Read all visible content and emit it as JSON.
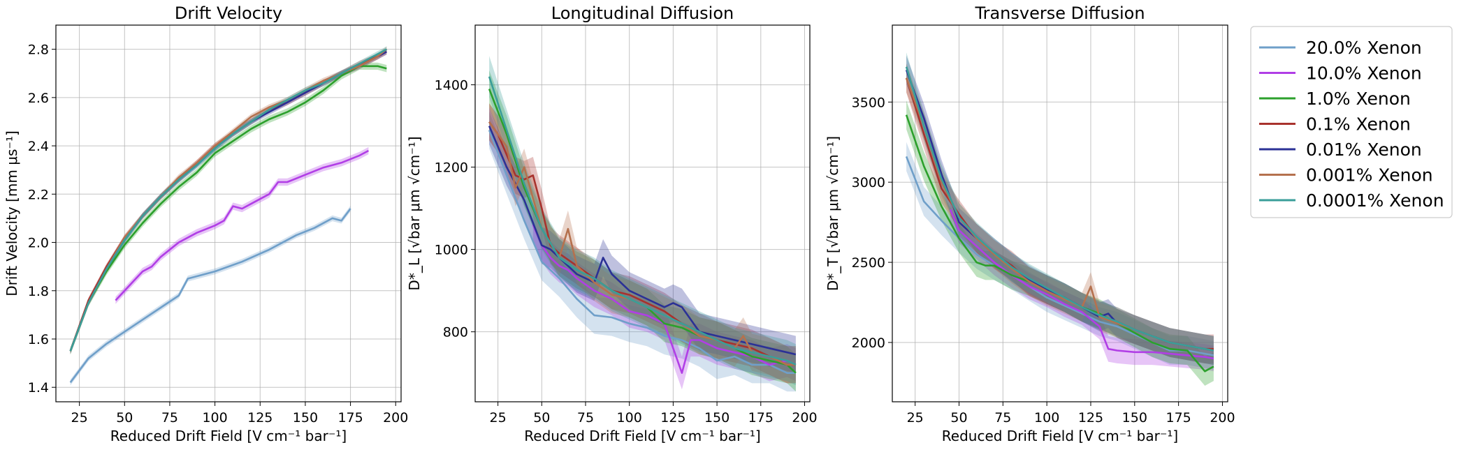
{
  "chart_data": [
    {
      "type": "line",
      "title": "Drift Velocity",
      "xlabel": "Reduced Drift Field [V cm⁻¹ bar⁻¹]",
      "ylabel": "Drift Velocity [mm μs⁻¹]",
      "xlim": [
        12,
        203
      ],
      "ylim": [
        1.34,
        2.9
      ],
      "xticks": [
        "25",
        "50",
        "75",
        "100",
        "125",
        "150",
        "175",
        "200"
      ],
      "yticks": [
        "1.4",
        "1.6",
        "1.8",
        "2.0",
        "2.2",
        "2.4",
        "2.6",
        "2.8"
      ],
      "grid": true,
      "series": [
        {
          "name": "20.0% Xenon",
          "color": "#6f9fc9",
          "x": [
            20,
            30,
            40,
            50,
            60,
            70,
            80,
            85,
            100,
            115,
            130,
            145,
            155,
            165,
            170,
            175
          ],
          "y": [
            1.42,
            1.52,
            1.58,
            1.63,
            1.68,
            1.73,
            1.78,
            1.85,
            1.88,
            1.92,
            1.97,
            2.03,
            2.06,
            2.1,
            2.09,
            2.14
          ],
          "band": 0.012
        },
        {
          "name": "10.0% Xenon",
          "color": "#b13ee6",
          "x": [
            45,
            50,
            55,
            60,
            65,
            70,
            80,
            90,
            100,
            105,
            110,
            115,
            120,
            130,
            135,
            140,
            150,
            160,
            170,
            180,
            185
          ],
          "y": [
            1.76,
            1.8,
            1.84,
            1.88,
            1.9,
            1.94,
            2.0,
            2.04,
            2.07,
            2.09,
            2.15,
            2.14,
            2.16,
            2.2,
            2.25,
            2.25,
            2.28,
            2.31,
            2.33,
            2.36,
            2.38
          ],
          "band": 0.015
        },
        {
          "name": "1.0% Xenon",
          "color": "#2ca02c",
          "x": [
            20,
            30,
            40,
            50,
            60,
            70,
            80,
            90,
            100,
            110,
            120,
            130,
            140,
            150,
            160,
            170,
            180,
            190,
            195
          ],
          "y": [
            1.55,
            1.75,
            1.88,
            1.99,
            2.08,
            2.16,
            2.23,
            2.29,
            2.37,
            2.42,
            2.47,
            2.51,
            2.54,
            2.58,
            2.63,
            2.69,
            2.73,
            2.73,
            2.72
          ],
          "band": 0.015
        },
        {
          "name": "0.1% Xenon",
          "color": "#a8322d",
          "x": [
            20,
            30,
            40,
            50,
            60,
            70,
            80,
            90,
            100,
            110,
            120,
            130,
            140,
            150,
            160,
            170,
            180,
            190,
            195
          ],
          "y": [
            1.55,
            1.76,
            1.9,
            2.02,
            2.11,
            2.19,
            2.26,
            2.33,
            2.4,
            2.45,
            2.5,
            2.55,
            2.58,
            2.62,
            2.66,
            2.7,
            2.74,
            2.77,
            2.79
          ],
          "band": 0.012
        },
        {
          "name": "0.01% Xenon",
          "color": "#2b3196",
          "x": [
            20,
            30,
            40,
            50,
            60,
            70,
            80,
            90,
            100,
            110,
            120,
            130,
            140,
            150,
            160,
            170,
            180,
            190,
            195
          ],
          "y": [
            1.55,
            1.75,
            1.89,
            2.01,
            2.11,
            2.19,
            2.26,
            2.32,
            2.39,
            2.45,
            2.5,
            2.54,
            2.58,
            2.62,
            2.66,
            2.7,
            2.73,
            2.77,
            2.79
          ],
          "band": 0.012
        },
        {
          "name": "0.001% Xenon",
          "color": "#b5714e",
          "x": [
            20,
            30,
            40,
            50,
            60,
            70,
            80,
            90,
            100,
            110,
            120,
            130,
            140,
            150,
            160,
            170,
            180,
            190,
            195
          ],
          "y": [
            1.55,
            1.75,
            1.89,
            2.02,
            2.11,
            2.19,
            2.27,
            2.33,
            2.4,
            2.46,
            2.52,
            2.56,
            2.59,
            2.63,
            2.67,
            2.7,
            2.73,
            2.77,
            2.8
          ],
          "band": 0.012
        },
        {
          "name": "0.0001% Xenon",
          "color": "#3a9e99",
          "x": [
            20,
            30,
            40,
            50,
            60,
            70,
            80,
            90,
            100,
            110,
            120,
            130,
            140,
            150,
            160,
            170,
            180,
            190,
            195
          ],
          "y": [
            1.55,
            1.75,
            1.89,
            2.01,
            2.11,
            2.19,
            2.26,
            2.32,
            2.39,
            2.45,
            2.5,
            2.55,
            2.59,
            2.63,
            2.66,
            2.7,
            2.74,
            2.78,
            2.8
          ],
          "band": 0.012
        }
      ]
    },
    {
      "type": "line",
      "title": "Longitudinal Diffusion",
      "xlabel": "Reduced Drift Field [V cm⁻¹ bar⁻¹]",
      "ylabel": "D*_L [√bar μm √cm⁻¹]",
      "xlim": [
        12,
        203
      ],
      "ylim": [
        630,
        1545
      ],
      "xticks": [
        "25",
        "50",
        "75",
        "100",
        "125",
        "150",
        "175",
        "200"
      ],
      "yticks": [
        "800",
        "1000",
        "1200",
        "1400"
      ],
      "grid": true,
      "series": [
        {
          "name": "20.0% Xenon",
          "color": "#6f9fc9",
          "x": [
            20,
            30,
            40,
            50,
            60,
            70,
            80,
            90,
            100,
            110,
            120,
            130,
            140,
            150,
            160,
            170,
            180,
            190,
            195
          ],
          "y": [
            1290,
            1180,
            1070,
            970,
            930,
            880,
            840,
            835,
            820,
            810,
            790,
            780,
            760,
            730,
            740,
            720,
            720,
            700,
            700
          ],
          "band": 45
        },
        {
          "name": "10.0% Xenon",
          "color": "#b13ee6",
          "x": [
            45,
            50,
            55,
            60,
            65,
            70,
            80,
            90,
            100,
            110,
            120,
            125,
            130,
            135,
            140,
            150,
            160,
            170,
            180,
            190,
            195
          ],
          "y": [
            1060,
            1010,
            980,
            960,
            950,
            930,
            900,
            880,
            850,
            840,
            820,
            760,
            700,
            780,
            780,
            760,
            750,
            740,
            720,
            730,
            720
          ],
          "band": 40
        },
        {
          "name": "1.0% Xenon",
          "color": "#2ca02c",
          "x": [
            20,
            30,
            40,
            50,
            60,
            70,
            80,
            90,
            100,
            110,
            120,
            130,
            140,
            150,
            160,
            170,
            180,
            190,
            195
          ],
          "y": [
            1390,
            1280,
            1150,
            1050,
            980,
            950,
            930,
            900,
            880,
            860,
            820,
            810,
            790,
            780,
            760,
            740,
            730,
            720,
            700
          ],
          "band": 45
        },
        {
          "name": "0.1% Xenon",
          "color": "#a8322d",
          "x": [
            20,
            25,
            30,
            35,
            40,
            45,
            50,
            55,
            60,
            70,
            80,
            90,
            100,
            110,
            120,
            130,
            140,
            150,
            160,
            170,
            180,
            190,
            195
          ],
          "y": [
            1310,
            1280,
            1230,
            1180,
            1170,
            1180,
            1100,
            1010,
            990,
            960,
            930,
            900,
            890,
            870,
            850,
            820,
            800,
            780,
            770,
            760,
            740,
            720,
            720
          ],
          "band": 45
        },
        {
          "name": "0.01% Xenon",
          "color": "#2b3196",
          "x": [
            20,
            30,
            40,
            50,
            55,
            60,
            70,
            80,
            85,
            90,
            100,
            110,
            120,
            125,
            130,
            140,
            150,
            160,
            170,
            180,
            190,
            195
          ],
          "y": [
            1300,
            1200,
            1120,
            1010,
            1000,
            980,
            940,
            920,
            980,
            940,
            900,
            880,
            860,
            870,
            860,
            800,
            790,
            780,
            770,
            760,
            750,
            745
          ],
          "band": 45
        },
        {
          "name": "0.001% Xenon",
          "color": "#b5714e",
          "x": [
            20,
            30,
            35,
            40,
            50,
            60,
            65,
            70,
            80,
            90,
            100,
            110,
            120,
            130,
            140,
            150,
            160,
            165,
            170,
            180,
            190,
            195
          ],
          "y": [
            1310,
            1250,
            1150,
            1200,
            1050,
            980,
            1050,
            960,
            920,
            890,
            880,
            860,
            840,
            820,
            790,
            780,
            760,
            790,
            750,
            740,
            720,
            720
          ],
          "band": 45
        },
        {
          "name": "0.0001% Xenon",
          "color": "#3a9e99",
          "x": [
            20,
            30,
            40,
            50,
            60,
            70,
            80,
            90,
            100,
            110,
            120,
            130,
            140,
            150,
            160,
            170,
            180,
            190,
            195
          ],
          "y": [
            1420,
            1290,
            1160,
            1050,
            980,
            950,
            930,
            900,
            880,
            860,
            840,
            820,
            800,
            780,
            760,
            750,
            740,
            730,
            720
          ],
          "band": 50
        }
      ]
    },
    {
      "type": "line",
      "title": "Transverse Diffusion",
      "xlabel": "Reduced Drift Field [V cm⁻¹ bar⁻¹]",
      "ylabel": "D*_T [√bar μm √cm⁻¹]",
      "xlim": [
        12,
        203
      ],
      "ylim": [
        1630,
        3980
      ],
      "xticks": [
        "25",
        "50",
        "75",
        "100",
        "125",
        "150",
        "175",
        "200"
      ],
      "yticks": [
        "2000",
        "2500",
        "3000",
        "3500"
      ],
      "grid": true,
      "series": [
        {
          "name": "20.0% Xenon",
          "color": "#6f9fc9",
          "x": [
            20,
            30,
            40,
            50,
            60,
            70,
            80,
            90,
            100,
            110,
            120,
            130,
            140,
            150,
            160,
            170,
            180,
            190,
            195
          ],
          "y": [
            3160,
            2880,
            2760,
            2650,
            2550,
            2480,
            2420,
            2350,
            2280,
            2230,
            2180,
            2130,
            2100,
            2050,
            2000,
            1950,
            1950,
            1930,
            1920
          ],
          "band": 90
        },
        {
          "name": "10.0% Xenon",
          "color": "#b13ee6",
          "x": [
            45,
            50,
            60,
            70,
            80,
            90,
            100,
            110,
            120,
            130,
            135,
            140,
            150,
            160,
            170,
            180,
            190,
            195
          ],
          "y": [
            2830,
            2700,
            2600,
            2500,
            2420,
            2350,
            2300,
            2240,
            2190,
            2100,
            1960,
            1950,
            1940,
            1940,
            1930,
            1920,
            1910,
            1900
          ],
          "band": 80
        },
        {
          "name": "1.0% Xenon",
          "color": "#2ca02c",
          "x": [
            20,
            30,
            40,
            50,
            60,
            65,
            70,
            80,
            90,
            100,
            110,
            120,
            130,
            140,
            150,
            160,
            170,
            180,
            190,
            195
          ],
          "y": [
            3420,
            3100,
            2850,
            2650,
            2500,
            2480,
            2480,
            2420,
            2380,
            2330,
            2280,
            2220,
            2180,
            2120,
            2060,
            2000,
            1960,
            1950,
            1820,
            1850
          ],
          "band": 90
        },
        {
          "name": "0.1% Xenon",
          "color": "#a8322d",
          "x": [
            20,
            30,
            40,
            50,
            60,
            70,
            80,
            90,
            100,
            110,
            120,
            130,
            140,
            150,
            160,
            170,
            180,
            190,
            195
          ],
          "y": [
            3650,
            3300,
            2960,
            2800,
            2650,
            2550,
            2480,
            2380,
            2330,
            2280,
            2220,
            2170,
            2130,
            2080,
            2040,
            2000,
            1980,
            1960,
            1960
          ],
          "band": 90
        },
        {
          "name": "0.01% Xenon",
          "color": "#2b3196",
          "x": [
            20,
            30,
            40,
            50,
            60,
            70,
            80,
            90,
            100,
            110,
            120,
            130,
            135,
            140,
            150,
            160,
            170,
            180,
            190,
            195
          ],
          "y": [
            3700,
            3400,
            3050,
            2750,
            2650,
            2560,
            2470,
            2390,
            2330,
            2280,
            2220,
            2160,
            2180,
            2120,
            2080,
            2040,
            2000,
            1980,
            1960,
            1950
          ],
          "band": 90
        },
        {
          "name": "0.001% Xenon",
          "color": "#b5714e",
          "x": [
            20,
            30,
            40,
            50,
            60,
            70,
            80,
            90,
            100,
            110,
            120,
            125,
            130,
            140,
            150,
            160,
            170,
            180,
            190,
            195
          ],
          "y": [
            3650,
            3350,
            3000,
            2780,
            2650,
            2550,
            2460,
            2380,
            2320,
            2270,
            2220,
            2350,
            2160,
            2120,
            2080,
            2040,
            2000,
            1980,
            1960,
            1950
          ],
          "band": 90
        },
        {
          "name": "0.0001% Xenon",
          "color": "#3a9e99",
          "x": [
            20,
            30,
            40,
            50,
            60,
            70,
            80,
            90,
            100,
            110,
            120,
            130,
            140,
            150,
            160,
            170,
            180,
            190,
            195
          ],
          "y": [
            3720,
            3350,
            3020,
            2780,
            2660,
            2560,
            2470,
            2400,
            2340,
            2280,
            2220,
            2170,
            2130,
            2080,
            2040,
            2000,
            1980,
            1960,
            1950
          ],
          "band": 90
        }
      ]
    }
  ],
  "legend": {
    "placement": "right",
    "items": [
      "20.0% Xenon",
      "10.0% Xenon",
      "1.0% Xenon",
      "0.1% Xenon",
      "0.01% Xenon",
      "0.001% Xenon",
      "0.0001% Xenon"
    ],
    "colors": [
      "#6f9fc9",
      "#b13ee6",
      "#2ca02c",
      "#a8322d",
      "#2b3196",
      "#b5714e",
      "#3a9e99"
    ]
  }
}
